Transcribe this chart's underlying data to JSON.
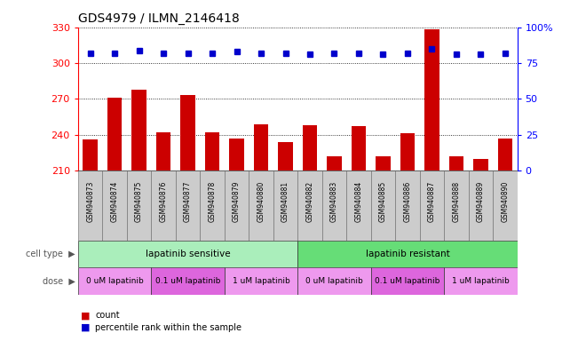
{
  "title": "GDS4979 / ILMN_2146418",
  "samples": [
    "GSM940873",
    "GSM940874",
    "GSM940875",
    "GSM940876",
    "GSM940877",
    "GSM940878",
    "GSM940879",
    "GSM940880",
    "GSM940881",
    "GSM940882",
    "GSM940883",
    "GSM940884",
    "GSM940885",
    "GSM940886",
    "GSM940887",
    "GSM940888",
    "GSM940889",
    "GSM940890"
  ],
  "counts": [
    236,
    271,
    278,
    242,
    273,
    242,
    237,
    249,
    234,
    248,
    222,
    247,
    222,
    241,
    328,
    222,
    220,
    237
  ],
  "percentiles": [
    82,
    82,
    84,
    82,
    82,
    82,
    83,
    82,
    82,
    81,
    82,
    82,
    81,
    82,
    85,
    81,
    81,
    82
  ],
  "ylim_left": [
    210,
    330
  ],
  "ylim_right": [
    0,
    100
  ],
  "yticks_left": [
    210,
    240,
    270,
    300,
    330
  ],
  "yticks_right": [
    0,
    25,
    50,
    75,
    100
  ],
  "bar_color": "#cc0000",
  "dot_color": "#0000cc",
  "background_color": "#ffffff",
  "tick_bg": "#d0d0d0",
  "cell_type_groups": [
    {
      "label": "lapatinib sensitive",
      "start": 0,
      "end": 9,
      "color": "#aaeebb"
    },
    {
      "label": "lapatinib resistant",
      "start": 9,
      "end": 18,
      "color": "#66dd77"
    }
  ],
  "dose_groups": [
    {
      "label": "0 uM lapatinib",
      "start": 0,
      "end": 3,
      "color": "#ee99ee"
    },
    {
      "label": "0.1 uM lapatinib",
      "start": 3,
      "end": 6,
      "color": "#dd66dd"
    },
    {
      "label": "1 uM lapatinib",
      "start": 6,
      "end": 9,
      "color": "#ee99ee"
    },
    {
      "label": "0 uM lapatinib",
      "start": 9,
      "end": 12,
      "color": "#ee99ee"
    },
    {
      "label": "0.1 uM lapatinib",
      "start": 12,
      "end": 15,
      "color": "#dd66dd"
    },
    {
      "label": "1 uM lapatinib",
      "start": 15,
      "end": 18,
      "color": "#ee99ee"
    }
  ]
}
